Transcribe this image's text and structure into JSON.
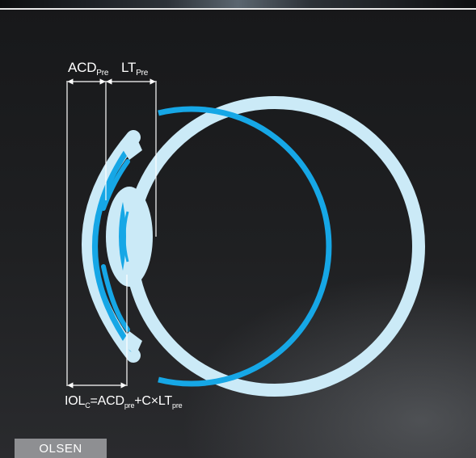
{
  "labels": {
    "acd": "ACD",
    "acd_sub": "Pre",
    "lt": "LT",
    "lt_sub": "Pre"
  },
  "formula": {
    "iol": "IOL",
    "iol_sub": "C",
    "eq": "=",
    "acd": "ACD",
    "acd_sub": "pre",
    "plus_c_times": "+C×LT",
    "lt_sub": "pre"
  },
  "tag": "OLSEN",
  "colors": {
    "background": "#1c1d1f",
    "eye_light": "#cbeaf7",
    "eye_blue": "#16a7e6",
    "lines": "#ffffff",
    "tag_bg": "#8e8f92"
  }
}
